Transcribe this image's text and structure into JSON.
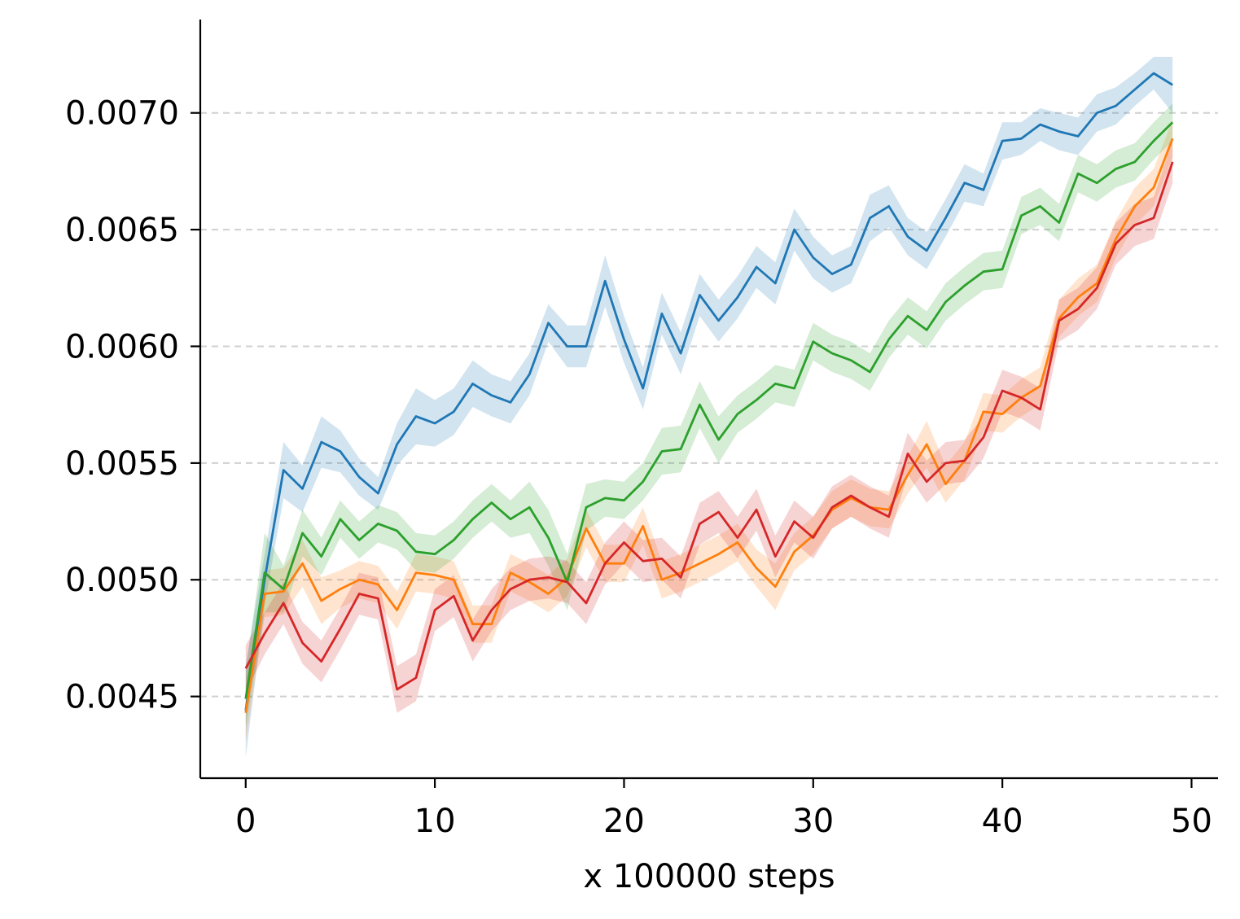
{
  "chart_data": {
    "type": "line",
    "title": "",
    "xlabel": "x 100000 steps",
    "ylabel": "",
    "xlim": [
      -2.4,
      51.4
    ],
    "ylim": [
      0.00415,
      0.0074
    ],
    "xticks": [
      0,
      10,
      20,
      30,
      40,
      50
    ],
    "xtick_labels": [
      "0",
      "10",
      "20",
      "30",
      "40",
      "50"
    ],
    "yticks": [
      0.0045,
      0.005,
      0.0055,
      0.006,
      0.0065,
      0.007
    ],
    "ytick_labels": [
      "0.0045",
      "0.0050",
      "0.0055",
      "0.0060",
      "0.0065",
      "0.0070"
    ],
    "grid": "horizontal dashed",
    "legend": "none",
    "x": [
      0,
      1,
      2,
      3,
      4,
      5,
      6,
      7,
      8,
      9,
      10,
      11,
      12,
      13,
      14,
      15,
      16,
      17,
      18,
      19,
      20,
      21,
      22,
      23,
      24,
      25,
      26,
      27,
      28,
      29,
      30,
      31,
      32,
      33,
      34,
      35,
      36,
      37,
      38,
      39,
      40,
      41,
      42,
      43,
      44,
      45,
      46,
      47,
      48,
      49
    ],
    "series": [
      {
        "color": "#1f77b4",
        "values": [
          0.00444,
          0.005,
          0.00547,
          0.00539,
          0.00559,
          0.00555,
          0.00544,
          0.00537,
          0.00558,
          0.0057,
          0.00567,
          0.00572,
          0.00584,
          0.00579,
          0.00576,
          0.00588,
          0.0061,
          0.006,
          0.006,
          0.00628,
          0.00603,
          0.00582,
          0.00614,
          0.00597,
          0.00622,
          0.00611,
          0.00621,
          0.00634,
          0.00627,
          0.0065,
          0.00638,
          0.00631,
          0.00635,
          0.00655,
          0.0066,
          0.00647,
          0.00641,
          0.00655,
          0.0067,
          0.00667,
          0.00688,
          0.00689,
          0.00695,
          0.00692,
          0.0069,
          0.007,
          0.00703,
          0.0071,
          0.00717,
          0.00712
        ],
        "band": [
          0.0002,
          0.00011,
          0.00012,
          0.0001,
          0.00011,
          9e-05,
          8e-05,
          7e-05,
          9e-05,
          0.00012,
          0.0001,
          0.0001,
          0.0001,
          9e-05,
          9e-05,
          9e-05,
          8e-05,
          9e-05,
          9e-05,
          0.00011,
          0.0001,
          9e-05,
          9e-05,
          9e-05,
          9e-05,
          9e-05,
          9e-05,
          9e-05,
          9e-05,
          9e-05,
          9e-05,
          8e-05,
          8e-05,
          0.0001,
          9e-05,
          8e-05,
          8e-05,
          8e-05,
          8e-05,
          7e-05,
          8e-05,
          7e-05,
          7e-05,
          8e-05,
          8e-05,
          8e-05,
          8e-05,
          7e-05,
          7e-05,
          0.00012
        ]
      },
      {
        "color": "#ff7f0e",
        "values": [
          0.00443,
          0.00494,
          0.00495,
          0.00507,
          0.00491,
          0.00496,
          0.005,
          0.00498,
          0.00487,
          0.00503,
          0.00502,
          0.005,
          0.00481,
          0.00481,
          0.00503,
          0.00499,
          0.00494,
          0.00501,
          0.00522,
          0.00507,
          0.00507,
          0.00523,
          0.005,
          0.00503,
          0.00507,
          0.00511,
          0.00516,
          0.00505,
          0.00497,
          0.00512,
          0.00519,
          0.0053,
          0.00535,
          0.00531,
          0.0053,
          0.00545,
          0.00558,
          0.00541,
          0.00551,
          0.00572,
          0.00571,
          0.00578,
          0.00583,
          0.00612,
          0.00621,
          0.00627,
          0.00646,
          0.0066,
          0.00668,
          0.00689
        ],
        "band": [
          0.00012,
          0.0001,
          0.0001,
          0.0001,
          0.0001,
          8e-05,
          8e-05,
          8e-05,
          8e-05,
          8e-05,
          8e-05,
          8e-05,
          8e-05,
          8e-05,
          8e-05,
          8e-05,
          8e-05,
          8e-05,
          8e-05,
          8e-05,
          8e-05,
          8e-05,
          8e-05,
          8e-05,
          8e-05,
          8e-05,
          8e-05,
          8e-05,
          0.0001,
          8e-05,
          8e-05,
          8e-05,
          8e-05,
          8e-05,
          8e-05,
          8e-05,
          0.0001,
          8e-05,
          8e-05,
          8e-05,
          8e-05,
          8e-05,
          8e-05,
          8e-05,
          8e-05,
          8e-05,
          8e-05,
          8e-05,
          8e-05,
          8e-05
        ]
      },
      {
        "color": "#2ca02c",
        "values": [
          0.00449,
          0.00503,
          0.00496,
          0.0052,
          0.0051,
          0.00526,
          0.00517,
          0.00524,
          0.00521,
          0.00512,
          0.00511,
          0.00517,
          0.00526,
          0.00533,
          0.00526,
          0.00531,
          0.00518,
          0.00499,
          0.00531,
          0.00535,
          0.00534,
          0.00542,
          0.00555,
          0.00556,
          0.00575,
          0.0056,
          0.00571,
          0.00577,
          0.00584,
          0.00582,
          0.00602,
          0.00597,
          0.00594,
          0.00589,
          0.00603,
          0.00613,
          0.00607,
          0.00619,
          0.00626,
          0.00632,
          0.00633,
          0.00656,
          0.0066,
          0.00653,
          0.00674,
          0.0067,
          0.00676,
          0.00679,
          0.00688,
          0.00696
        ],
        "band": [
          0.00012,
          0.00017,
          0.0001,
          0.0001,
          8e-05,
          8e-05,
          8e-05,
          8e-05,
          8e-05,
          8e-05,
          8e-05,
          8e-05,
          8e-05,
          8e-05,
          8e-05,
          0.00011,
          0.00012,
          0.00012,
          0.0001,
          8e-05,
          8e-05,
          8e-05,
          0.0001,
          0.0001,
          0.0001,
          0.0001,
          8e-05,
          8e-05,
          8e-05,
          8e-05,
          8e-05,
          8e-05,
          8e-05,
          8e-05,
          8e-05,
          8e-05,
          8e-05,
          8e-05,
          8e-05,
          8e-05,
          8e-05,
          8e-05,
          8e-05,
          8e-05,
          8e-05,
          8e-05,
          8e-05,
          8e-05,
          8e-05,
          8e-05
        ]
      },
      {
        "color": "#d62728",
        "values": [
          0.00462,
          0.00477,
          0.0049,
          0.00473,
          0.00465,
          0.00479,
          0.00494,
          0.00492,
          0.00453,
          0.00458,
          0.00487,
          0.00493,
          0.00474,
          0.00487,
          0.00496,
          0.005,
          0.00501,
          0.00499,
          0.0049,
          0.00507,
          0.00516,
          0.00508,
          0.00509,
          0.00501,
          0.00524,
          0.00529,
          0.00518,
          0.0053,
          0.0051,
          0.00525,
          0.00518,
          0.00531,
          0.00536,
          0.00531,
          0.00527,
          0.00554,
          0.00542,
          0.0055,
          0.00551,
          0.00561,
          0.00581,
          0.00578,
          0.00573,
          0.00611,
          0.00616,
          0.00625,
          0.00644,
          0.00652,
          0.00655,
          0.00679
        ],
        "band": [
          0.0001,
          9e-05,
          9e-05,
          9e-05,
          9e-05,
          9e-05,
          9e-05,
          9e-05,
          0.0001,
          0.0001,
          9e-05,
          9e-05,
          9e-05,
          9e-05,
          9e-05,
          9e-05,
          9e-05,
          9e-05,
          9e-05,
          9e-05,
          9e-05,
          9e-05,
          9e-05,
          9e-05,
          9e-05,
          9e-05,
          9e-05,
          9e-05,
          9e-05,
          9e-05,
          9e-05,
          9e-05,
          9e-05,
          9e-05,
          9e-05,
          9e-05,
          9e-05,
          9e-05,
          9e-05,
          9e-05,
          9e-05,
          9e-05,
          9e-05,
          9e-05,
          9e-05,
          9e-05,
          9e-05,
          9e-05,
          9e-05,
          9e-05
        ]
      }
    ]
  }
}
